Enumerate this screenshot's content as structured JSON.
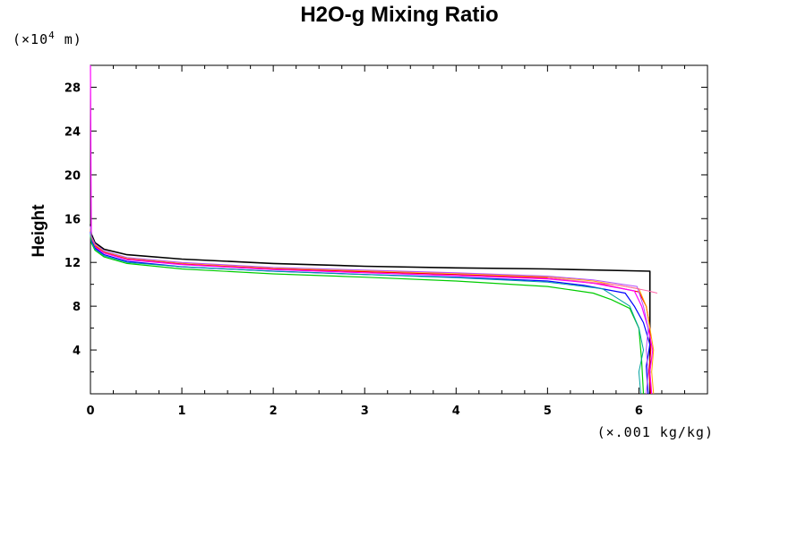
{
  "chart_data": {
    "type": "line",
    "title": "H2O-g Mixing Ratio",
    "ylabel": "Height",
    "y_units": {
      "prefix": "(×10",
      "exp": "4",
      "suffix": " m)"
    },
    "x_units": "(×.001 kg/kg)",
    "xlim": [
      0,
      6.75
    ],
    "ylim": [
      0,
      30
    ],
    "x_ticks": [
      0,
      1,
      2,
      3,
      4,
      5,
      6
    ],
    "x_tick_labels": [
      "0",
      "1",
      "2",
      "3",
      "4",
      "5",
      "6"
    ],
    "y_ticks": [
      4,
      8,
      12,
      16,
      20,
      24,
      28
    ],
    "y_tick_labels": [
      "4",
      "8",
      "12",
      "16",
      "20",
      "24",
      "28"
    ],
    "grid": false,
    "legend": "none",
    "series": [
      {
        "color": "#000000",
        "width": 1.6,
        "points": [
          [
            6.12,
            0
          ],
          [
            6.12,
            11.2
          ],
          [
            5.0,
            11.4
          ],
          [
            4.0,
            11.5
          ],
          [
            3.0,
            11.65
          ],
          [
            2.0,
            11.9
          ],
          [
            1.0,
            12.3
          ],
          [
            0.4,
            12.7
          ],
          [
            0.15,
            13.2
          ],
          [
            0.05,
            13.8
          ],
          [
            0.01,
            14.6
          ],
          [
            0,
            15.5
          ]
        ]
      },
      {
        "color": "#ff0000",
        "width": 1.2,
        "points": [
          [
            6.13,
            0
          ],
          [
            6.11,
            2.0
          ],
          [
            6.13,
            4.0
          ],
          [
            6.12,
            6.0
          ],
          [
            6.08,
            8.0
          ],
          [
            6.0,
            9.3
          ],
          [
            5.6,
            10.0
          ],
          [
            5.0,
            10.6
          ],
          [
            4.0,
            10.9
          ],
          [
            3.0,
            11.15
          ],
          [
            2.0,
            11.4
          ],
          [
            1.0,
            11.85
          ],
          [
            0.4,
            12.3
          ],
          [
            0.15,
            12.9
          ],
          [
            0.05,
            13.5
          ],
          [
            0.01,
            14.3
          ],
          [
            0,
            15.0
          ]
        ]
      },
      {
        "color": "#ff00ff",
        "width": 1.2,
        "points": [
          [
            6.14,
            0
          ],
          [
            6.12,
            2.0
          ],
          [
            6.15,
            4.0
          ],
          [
            6.1,
            6.0
          ],
          [
            6.03,
            8.0
          ],
          [
            5.95,
            9.4
          ],
          [
            5.5,
            10.1
          ],
          [
            5.0,
            10.5
          ],
          [
            4.0,
            10.8
          ],
          [
            3.0,
            11.05
          ],
          [
            2.0,
            11.35
          ],
          [
            1.0,
            11.8
          ],
          [
            0.4,
            12.25
          ],
          [
            0.15,
            12.85
          ],
          [
            0.05,
            13.4
          ],
          [
            0.01,
            14.2
          ],
          [
            0,
            30
          ]
        ]
      },
      {
        "color": "#0000ff",
        "width": 1.2,
        "points": [
          [
            6.1,
            0
          ],
          [
            6.08,
            2.5
          ],
          [
            6.12,
            4.5
          ],
          [
            6.05,
            6.5
          ],
          [
            5.95,
            8.0
          ],
          [
            5.85,
            9.2
          ],
          [
            5.4,
            9.9
          ],
          [
            5.0,
            10.3
          ],
          [
            4.0,
            10.65
          ],
          [
            3.0,
            10.9
          ],
          [
            2.0,
            11.2
          ],
          [
            1.0,
            11.6
          ],
          [
            0.4,
            12.1
          ],
          [
            0.15,
            12.7
          ],
          [
            0.05,
            13.3
          ],
          [
            0.01,
            14.0
          ],
          [
            0,
            14.8
          ]
        ]
      },
      {
        "color": "#00cc00",
        "width": 1.2,
        "points": [
          [
            6.05,
            0
          ],
          [
            6.03,
            3.0
          ],
          [
            6.0,
            6.0
          ],
          [
            5.9,
            7.8
          ],
          [
            5.7,
            8.6
          ],
          [
            5.5,
            9.2
          ],
          [
            5.0,
            9.8
          ],
          [
            4.0,
            10.3
          ],
          [
            3.0,
            10.65
          ],
          [
            2.0,
            10.95
          ],
          [
            1.0,
            11.4
          ],
          [
            0.4,
            11.9
          ],
          [
            0.15,
            12.5
          ],
          [
            0.05,
            13.1
          ],
          [
            0.01,
            13.8
          ],
          [
            0,
            14.5
          ]
        ]
      },
      {
        "color": "#00a0a0",
        "width": 1.0,
        "points": [
          [
            6.02,
            0
          ],
          [
            6.0,
            2.0
          ],
          [
            6.05,
            4.0
          ],
          [
            6.0,
            6.0
          ],
          [
            5.9,
            8.0
          ],
          [
            5.6,
            9.6
          ],
          [
            5.0,
            10.2
          ],
          [
            4.0,
            10.6
          ],
          [
            3.0,
            10.9
          ],
          [
            2.0,
            11.2
          ],
          [
            1.0,
            11.6
          ],
          [
            0.4,
            12.0
          ],
          [
            0.15,
            12.6
          ],
          [
            0.05,
            13.2
          ],
          [
            0.01,
            13.9
          ],
          [
            0,
            14.6
          ]
        ]
      },
      {
        "color": "#ffaa00",
        "width": 1.0,
        "points": [
          [
            6.16,
            0
          ],
          [
            6.14,
            2.0
          ],
          [
            6.16,
            4.0
          ],
          [
            6.12,
            6.0
          ],
          [
            6.08,
            8.0
          ],
          [
            6.0,
            9.6
          ],
          [
            5.5,
            10.3
          ],
          [
            5.0,
            10.7
          ],
          [
            4.0,
            11.0
          ],
          [
            3.0,
            11.25
          ],
          [
            2.0,
            11.5
          ],
          [
            1.0,
            11.95
          ],
          [
            0.4,
            12.4
          ],
          [
            0.15,
            13.0
          ],
          [
            0.05,
            13.6
          ],
          [
            0.01,
            14.3
          ],
          [
            0,
            15.2
          ]
        ]
      },
      {
        "color": "#b44bff",
        "width": 1.0,
        "points": [
          [
            6.08,
            0
          ],
          [
            6.1,
            2.0
          ],
          [
            6.08,
            4.0
          ],
          [
            6.1,
            6.0
          ],
          [
            6.05,
            8.0
          ],
          [
            5.98,
            9.8
          ],
          [
            5.5,
            10.4
          ],
          [
            5.0,
            10.75
          ],
          [
            4.0,
            11.05
          ],
          [
            3.0,
            11.3
          ],
          [
            2.0,
            11.55
          ],
          [
            1.0,
            12.0
          ],
          [
            0.4,
            12.45
          ],
          [
            0.15,
            13.05
          ],
          [
            0.05,
            13.7
          ],
          [
            0.01,
            14.4
          ],
          [
            0,
            15.3
          ]
        ]
      },
      {
        "color": "#ff66aa",
        "width": 1.0,
        "points": [
          [
            6.2,
            9.2
          ],
          [
            6.1,
            9.4
          ],
          [
            5.8,
            9.9
          ],
          [
            5.0,
            10.6
          ]
        ]
      }
    ]
  }
}
